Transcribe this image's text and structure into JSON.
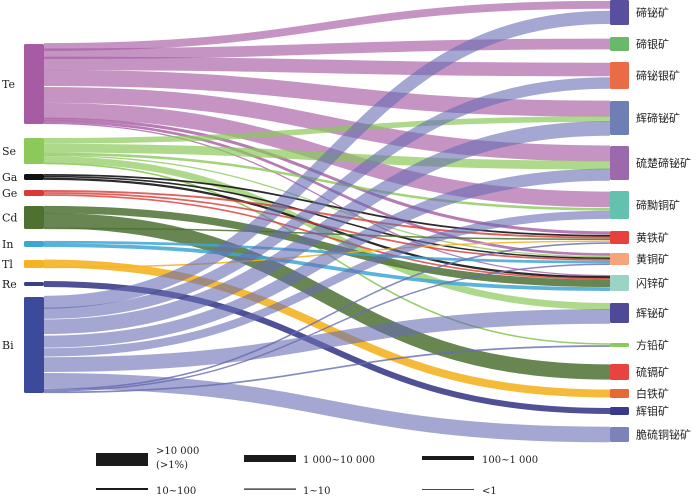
{
  "diagram": {
    "type": "sankey",
    "sources": [
      {
        "id": "Te",
        "label": "Te",
        "color": "#a65ba3"
      },
      {
        "id": "Se",
        "label": "Se",
        "color": "#8cc95a"
      },
      {
        "id": "Ga",
        "label": "Ga",
        "color": "#111111"
      },
      {
        "id": "Ge",
        "label": "Ge",
        "color": "#d93a35"
      },
      {
        "id": "Cd",
        "label": "Cd",
        "color": "#4e7132"
      },
      {
        "id": "In",
        "label": "In",
        "color": "#3fa6d4"
      },
      {
        "id": "Tl",
        "label": "Tl",
        "color": "#f5b324"
      },
      {
        "id": "Re",
        "label": "Re",
        "color": "#3d3d8a"
      },
      {
        "id": "Bi",
        "label": "Bi",
        "color": "#3b4a9b"
      }
    ],
    "targets": [
      {
        "id": "t1",
        "label": "碲铋矿",
        "color": "#5a4e9e"
      },
      {
        "id": "t2",
        "label": "碲银矿",
        "color": "#6ab86a"
      },
      {
        "id": "t3",
        "label": "碲铋银矿",
        "color": "#ea6c46"
      },
      {
        "id": "t4",
        "label": "辉碲铋矿",
        "color": "#6d7fb5"
      },
      {
        "id": "t5",
        "label": "硫楚碲铋矿",
        "color": "#9c6aac"
      },
      {
        "id": "t6",
        "label": "碲黝铜矿",
        "color": "#63c1ae"
      },
      {
        "id": "t7",
        "label": "黄铁矿",
        "color": "#e8403c"
      },
      {
        "id": "t8",
        "label": "黄铜矿",
        "color": "#f7a47a"
      },
      {
        "id": "t9",
        "label": "闪锌矿",
        "color": "#9bd4c4"
      },
      {
        "id": "t10",
        "label": "辉铋矿",
        "color": "#4f4a98"
      },
      {
        "id": "t11",
        "label": "方铅矿",
        "color": "#8cc95a"
      },
      {
        "id": "t12",
        "label": "硫镉矿",
        "color": "#e8443f"
      },
      {
        "id": "t13",
        "label": "白铁矿",
        "color": "#e86a33"
      },
      {
        "id": "t14",
        "label": "辉钼矿",
        "color": "#3a3a8c"
      },
      {
        "id": "t15",
        "label": "脆硫铜铋矿",
        "color": "#7b83b8"
      }
    ],
    "flows": [
      {
        "s": "Te",
        "t": "t1",
        "w": 5,
        "c": "rgba(166,91,163,0.65)"
      },
      {
        "s": "Te",
        "t": "t2",
        "w": 6,
        "c": "rgba(166,91,163,0.65)"
      },
      {
        "s": "Te",
        "t": "t3",
        "w": 10,
        "c": "rgba(166,91,163,0.65)"
      },
      {
        "s": "Te",
        "t": "t4",
        "w": 14,
        "c": "rgba(166,91,163,0.65)"
      },
      {
        "s": "Te",
        "t": "t5",
        "w": 14,
        "c": "rgba(166,91,163,0.65)"
      },
      {
        "s": "Te",
        "t": "t6",
        "w": 12,
        "c": "rgba(166,91,163,0.65)"
      },
      {
        "s": "Te",
        "t": "t7",
        "w": 2,
        "c": "rgba(166,91,163,0.8)"
      },
      {
        "s": "Te",
        "t": "t8",
        "w": 2,
        "c": "rgba(166,91,163,0.8)"
      },
      {
        "s": "Te",
        "t": "t9",
        "w": 1,
        "c": "rgba(166,91,163,0.8)"
      },
      {
        "s": "Se",
        "t": "t4",
        "w": 5,
        "c": "rgba(140,201,90,0.7)"
      },
      {
        "s": "Se",
        "t": "t5",
        "w": 8,
        "c": "rgba(140,201,90,0.7)"
      },
      {
        "s": "Se",
        "t": "t6",
        "w": 2,
        "c": "rgba(140,201,90,0.8)"
      },
      {
        "s": "Se",
        "t": "t8",
        "w": 1,
        "c": "rgba(140,201,90,0.8)"
      },
      {
        "s": "Se",
        "t": "t10",
        "w": 6,
        "c": "rgba(140,201,90,0.7)"
      },
      {
        "s": "Se",
        "t": "t11",
        "w": 1,
        "c": "rgba(140,201,90,0.9)"
      },
      {
        "s": "Ga",
        "t": "t7",
        "w": 1,
        "c": "rgba(20,20,20,0.9)"
      },
      {
        "s": "Ga",
        "t": "t8",
        "w": 1,
        "c": "rgba(20,20,20,0.9)"
      },
      {
        "s": "Ga",
        "t": "t9",
        "w": 1.5,
        "c": "rgba(20,20,20,0.9)"
      },
      {
        "s": "Ge",
        "t": "t7",
        "w": 1,
        "c": "rgba(217,58,53,0.8)"
      },
      {
        "s": "Ge",
        "t": "t8",
        "w": 1,
        "c": "rgba(217,58,53,0.8)"
      },
      {
        "s": "Ge",
        "t": "t9",
        "w": 1,
        "c": "rgba(217,58,53,0.8)"
      },
      {
        "s": "Cd",
        "t": "t9",
        "w": 6,
        "c": "rgba(78,113,50,0.85)"
      },
      {
        "s": "Cd",
        "t": "t12",
        "w": 12,
        "c": "rgba(78,113,50,0.85)"
      },
      {
        "s": "Cd",
        "t": "t7",
        "w": 1,
        "c": "rgba(78,113,50,0.85)"
      },
      {
        "s": "In",
        "t": "t8",
        "w": 2,
        "c": "rgba(63,166,212,0.85)"
      },
      {
        "s": "In",
        "t": "t9",
        "w": 3,
        "c": "rgba(63,166,212,0.85)"
      },
      {
        "s": "Tl",
        "t": "t13",
        "w": 7,
        "c": "rgba(245,179,36,0.9)"
      },
      {
        "s": "Tl",
        "t": "t7",
        "w": 1,
        "c": "rgba(245,179,36,0.9)"
      },
      {
        "s": "Re",
        "t": "t14",
        "w": 2,
        "c": "rgba(61,61,138,0.9)"
      },
      {
        "s": "Bi",
        "t": "t1",
        "w": 8,
        "c": "rgba(103,108,178,0.6)"
      },
      {
        "s": "Bi",
        "t": "t3",
        "w": 8,
        "c": "rgba(103,108,178,0.6)"
      },
      {
        "s": "Bi",
        "t": "t4",
        "w": 12,
        "c": "rgba(103,108,178,0.6)"
      },
      {
        "s": "Bi",
        "t": "t5",
        "w": 10,
        "c": "rgba(103,108,178,0.6)"
      },
      {
        "s": "Bi",
        "t": "t6",
        "w": 6,
        "c": "rgba(103,108,178,0.6)"
      },
      {
        "s": "Bi",
        "t": "t10",
        "w": 12,
        "c": "rgba(103,108,178,0.6)"
      },
      {
        "s": "Bi",
        "t": "t15",
        "w": 12,
        "c": "rgba(103,108,178,0.6)"
      },
      {
        "s": "Bi",
        "t": "t7",
        "w": 1,
        "c": "rgba(103,108,178,0.8)"
      },
      {
        "s": "Bi",
        "t": "t8",
        "w": 1,
        "c": "rgba(103,108,178,0.8)"
      },
      {
        "s": "Bi",
        "t": "t11",
        "w": 1,
        "c": "rgba(103,108,178,0.8)"
      }
    ]
  },
  "legend": [
    {
      "label": ">10 000",
      "label2": "(>1%)",
      "size": "xl"
    },
    {
      "label": "1 000~10 000",
      "size": "lg"
    },
    {
      "label": "100~1 000",
      "size": "md"
    },
    {
      "label": "10~100",
      "size": "sm"
    },
    {
      "label": "1~10",
      "size": "xs"
    },
    {
      "label": "<1",
      "size": "xxs"
    }
  ]
}
